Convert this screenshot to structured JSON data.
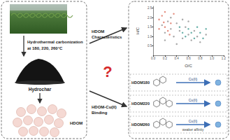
{
  "left": {
    "process": [
      "Hydrothermal carbonization",
      "at 180, 220, 260°C"
    ],
    "product": "Hydrochar",
    "extract": "HDOM"
  },
  "middle": {
    "question": "?",
    "arrow_top": [
      "HDOM",
      "Characteristics"
    ],
    "arrow_bottom": [
      "HDOM-Cu(II)",
      "Binding"
    ]
  },
  "chart_data": {
    "type": "scatter",
    "x_label": "O/C",
    "y_label": "H/C",
    "xlim": [
      0,
      1.2
    ],
    "xticks": [
      {
        "value": 0,
        "label": "0.0"
      },
      {
        "value": 0.2,
        "label": "0.2"
      },
      {
        "value": 0.4,
        "label": "0.4"
      },
      {
        "value": 0.6,
        "label": "0.6"
      },
      {
        "value": 0.8,
        "label": "0.8"
      },
      {
        "value": 1.0,
        "label": "1.0"
      },
      {
        "value": 1.2,
        "label": "1.2"
      }
    ],
    "ylim": [
      0,
      2.6
    ],
    "yticks": [
      {
        "value": 0.5,
        "label": "0.5"
      },
      {
        "value": 1.0,
        "label": "1.0"
      },
      {
        "value": 1.5,
        "label": "1.5"
      },
      {
        "value": 2.0,
        "label": "2.0"
      },
      {
        "value": 2.5,
        "label": "2.5"
      }
    ],
    "series": [
      {
        "color": "#9a9a9a",
        "values": [
          [
            0.15,
            1.6
          ],
          [
            0.2,
            1.2
          ],
          [
            0.25,
            1.8
          ],
          [
            0.3,
            1.4
          ],
          [
            0.35,
            1.0
          ],
          [
            0.4,
            1.7
          ],
          [
            0.45,
            1.3
          ],
          [
            0.5,
            0.9
          ],
          [
            0.55,
            1.5
          ],
          [
            0.6,
            1.1
          ],
          [
            0.65,
            0.8
          ],
          [
            0.7,
            1.3
          ],
          [
            0.75,
            1.0
          ],
          [
            0.8,
            0.7
          ],
          [
            0.3,
            2.0
          ],
          [
            0.5,
            1.9
          ],
          [
            0.2,
            0.8
          ],
          [
            0.9,
            1.1
          ],
          [
            0.4,
            0.6
          ],
          [
            0.6,
            1.8
          ]
        ]
      },
      {
        "color": "#e07a6a",
        "values": [
          [
            0.1,
            1.9
          ],
          [
            0.15,
            2.1
          ],
          [
            0.2,
            1.5
          ],
          [
            0.25,
            1.3
          ],
          [
            0.3,
            1.7
          ],
          [
            0.35,
            2.2
          ],
          [
            0.1,
            1.4
          ],
          [
            0.2,
            2.3
          ],
          [
            0.28,
            1.1
          ],
          [
            0.18,
            1.75
          ]
        ]
      },
      {
        "color": "#4fa39b",
        "values": [
          [
            0.5,
            1.2
          ],
          [
            0.55,
            1.0
          ],
          [
            0.6,
            1.4
          ],
          [
            0.65,
            1.2
          ],
          [
            0.7,
            0.9
          ],
          [
            0.75,
            1.5
          ],
          [
            0.8,
            1.2
          ],
          [
            0.85,
            0.9
          ],
          [
            0.45,
            1.5
          ],
          [
            0.9,
            1.4
          ]
        ]
      }
    ]
  },
  "binding": {
    "rows": [
      "HDOM180",
      "HDOM220",
      "HDOM260"
    ],
    "ion": "Cu(II)",
    "note": "weaker affinity"
  }
}
